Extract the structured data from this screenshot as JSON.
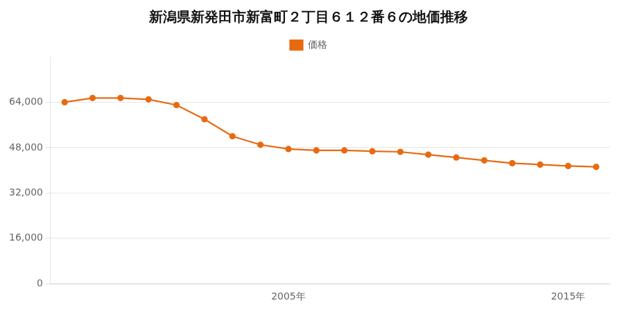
{
  "chart_data": {
    "type": "line",
    "title": "新潟県新発田市新富町２丁目６１２番６の地価推移",
    "x": [
      1997,
      1998,
      1999,
      2000,
      2001,
      2002,
      2003,
      2004,
      2005,
      2006,
      2007,
      2008,
      2009,
      2010,
      2011,
      2012,
      2013,
      2014,
      2015,
      2016
    ],
    "series": [
      {
        "name": "価格",
        "color": "#e86a10",
        "marker": "circle",
        "line_style": "solid",
        "values": [
          64000,
          65500,
          65500,
          65000,
          63000,
          58000,
          52000,
          49000,
          47500,
          47000,
          47000,
          46700,
          46500,
          45500,
          44500,
          43500,
          42500,
          42000,
          41500,
          41200
        ]
      }
    ],
    "xlim": [
      1996.5,
      2016.5
    ],
    "xticks": [
      {
        "value": 2005,
        "label": "2005年"
      },
      {
        "value": 2015,
        "label": "2015年"
      }
    ],
    "ylim": [
      0,
      80000
    ],
    "yticks": [
      0,
      {
        "value": 16000,
        "label": "16,000"
      },
      {
        "value": 32000,
        "label": "32,000"
      },
      {
        "value": 48000,
        "label": "48,000"
      },
      {
        "value": 64000,
        "label": "64,000"
      }
    ],
    "grid": "y",
    "legend": "top"
  }
}
